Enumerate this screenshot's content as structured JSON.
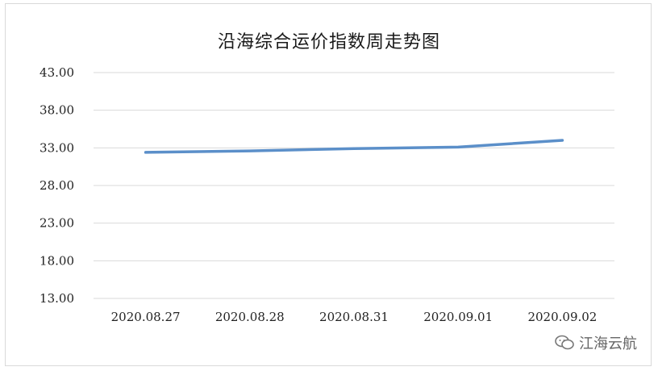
{
  "chart_data": {
    "type": "line",
    "title": "沿海综合运价指数周走势图",
    "categories": [
      "2020.08.27",
      "2020.08.28",
      "2020.08.31",
      "2020.09.01",
      "2020.09.02"
    ],
    "series": [
      {
        "values": [
          32.4,
          32.6,
          32.9,
          33.1,
          34.0
        ]
      }
    ],
    "yticks": [
      "43.00",
      "38.00",
      "33.00",
      "28.00",
      "23.00",
      "18.00",
      "13.00"
    ],
    "ylim": [
      13,
      43
    ],
    "grid": true,
    "line_color": "#5b8fc9",
    "grid_color": "#d9d9d9"
  },
  "watermark": {
    "text": "江海云航",
    "icon": "wechat-icon"
  }
}
